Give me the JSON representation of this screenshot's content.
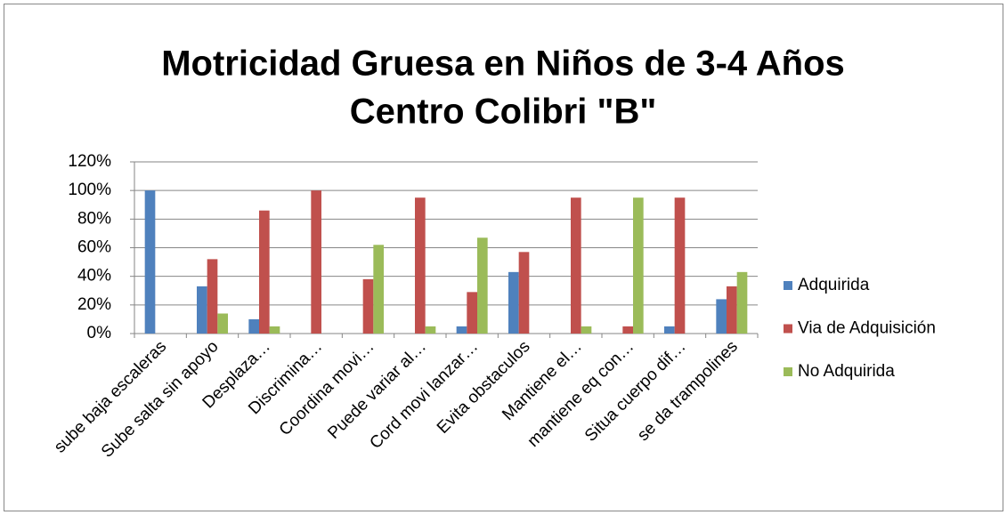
{
  "chart_data": {
    "type": "bar",
    "title": [
      "Motricidad Gruesa en Niños de 3-4 Años",
      "Centro Colibri \"B\""
    ],
    "categories": [
      "sube baja escaleras",
      "Sube salta sin apoyo",
      "Desplaza…",
      "Discrimina…",
      "Coordina movi…",
      "Puede variar al…",
      "Cord movi lanzar…",
      "Evita obstaculos",
      "Mantiene el…",
      "mantiene eq con…",
      "Situa cuerpo dif…",
      "se da trampolines"
    ],
    "series": [
      {
        "name": "Adquirida",
        "color": "#4f81bd",
        "values": [
          100,
          33,
          10,
          0,
          0,
          0,
          5,
          43,
          0,
          0,
          5,
          24
        ]
      },
      {
        "name": "Via de Adquisición",
        "color": "#c0504d",
        "values": [
          0,
          52,
          86,
          100,
          38,
          95,
          29,
          57,
          95,
          5,
          95,
          33
        ]
      },
      {
        "name": "No Adquirida",
        "color": "#9bbb59",
        "values": [
          0,
          14,
          5,
          0,
          62,
          5,
          67,
          0,
          5,
          95,
          0,
          43
        ]
      }
    ],
    "ylim": [
      0,
      120
    ],
    "yticks": [
      {
        "value": 0,
        "label": "0%"
      },
      {
        "value": 20,
        "label": "20%"
      },
      {
        "value": 40,
        "label": "40%"
      },
      {
        "value": 60,
        "label": "60%"
      },
      {
        "value": 80,
        "label": "80%"
      },
      {
        "value": 100,
        "label": "100%"
      },
      {
        "value": 120,
        "label": "120%"
      }
    ],
    "grid": true,
    "legend": "right"
  }
}
